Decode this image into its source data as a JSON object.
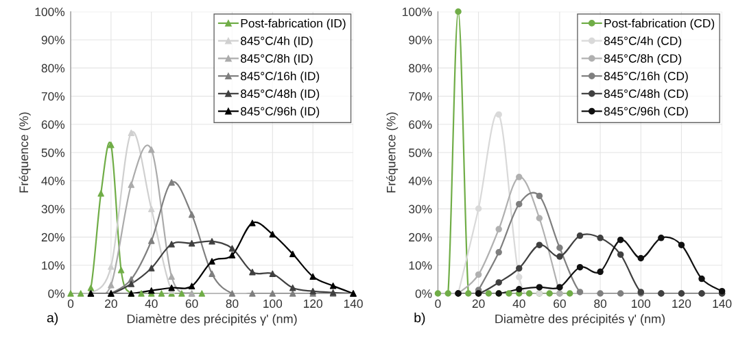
{
  "chart_data": [
    {
      "type": "line",
      "xlabel": "Diamètre des précipités γ' (nm)",
      "ylabel": "Fréquence (%)",
      "marker": "triangle",
      "legend": "top right",
      "grid": true,
      "xlim": [
        0,
        140
      ],
      "xticks": [
        0,
        20,
        40,
        60,
        80,
        100,
        120,
        140
      ],
      "ylim": [
        0,
        100
      ],
      "yticks": [
        {
          "value": 0,
          "label": "0%"
        },
        {
          "value": 10,
          "label": "10%"
        },
        {
          "value": 20,
          "label": "20%"
        },
        {
          "value": 30,
          "label": "30%"
        },
        {
          "value": 40,
          "label": "40%"
        },
        {
          "value": 50,
          "label": "50%"
        },
        {
          "value": 60,
          "label": "60%"
        },
        {
          "value": 70,
          "label": "70%"
        },
        {
          "value": 80,
          "label": "80%"
        },
        {
          "value": 90,
          "label": "90%"
        },
        {
          "value": 100,
          "label": "100%"
        }
      ],
      "annotations": [
        "a)"
      ],
      "series": [
        {
          "name": "Post-fabrication (ID)",
          "color": "#70ad47",
          "x": [
            0,
            5,
            10,
            15,
            20,
            25,
            30,
            35,
            40,
            45,
            50,
            55,
            60,
            65
          ],
          "values": [
            0,
            0,
            2,
            35.5,
            52.7,
            8.3,
            0,
            0,
            0,
            0,
            0,
            0,
            0,
            0
          ]
        },
        {
          "name": "845°C/4h (ID)",
          "color": "#d0d0d0",
          "x": [
            10,
            20,
            30,
            40,
            50,
            60
          ],
          "values": [
            0,
            9.5,
            57,
            30,
            1,
            0
          ]
        },
        {
          "name": "845°C/8h (ID)",
          "color": "#ababab",
          "x": [
            10,
            20,
            30,
            40,
            50,
            60
          ],
          "values": [
            0,
            3,
            38.6,
            51,
            6,
            0
          ]
        },
        {
          "name": "845°C/16h (ID)",
          "color": "#7f7f7f",
          "x": [
            20,
            30,
            40,
            50,
            60,
            70,
            80,
            90,
            100,
            110,
            120,
            130,
            140
          ],
          "values": [
            0,
            5,
            18.7,
            39.4,
            28,
            7,
            0,
            0,
            0,
            0,
            0,
            0,
            0
          ]
        },
        {
          "name": "845°C/48h (ID)",
          "color": "#404040",
          "x": [
            10,
            20,
            30,
            40,
            50,
            60,
            70,
            80,
            90,
            100,
            110,
            120,
            130,
            140
          ],
          "values": [
            0,
            0,
            3.4,
            9,
            17.5,
            17.8,
            18.5,
            16,
            7.6,
            7,
            2,
            0.8,
            0.3,
            0
          ]
        },
        {
          "name": "845°C/96h (ID)",
          "color": "#000000",
          "x": [
            10,
            20,
            30,
            40,
            50,
            60,
            70,
            80,
            90,
            100,
            110,
            120,
            130,
            140
          ],
          "values": [
            0,
            0,
            0,
            1,
            2,
            2.6,
            11.4,
            13.6,
            25,
            21,
            14,
            6,
            2.7,
            0
          ]
        }
      ]
    },
    {
      "type": "line",
      "xlabel": "Diamètre des précipités γ' (nm)",
      "ylabel": "Fréquence (%)",
      "marker": "circle",
      "legend": "top right",
      "grid": true,
      "xlim": [
        0,
        140
      ],
      "xticks": [
        0,
        20,
        40,
        60,
        80,
        100,
        120,
        140
      ],
      "ylim": [
        0,
        100
      ],
      "yticks": [
        {
          "value": 0,
          "label": "0%"
        },
        {
          "value": 10,
          "label": "10%"
        },
        {
          "value": 20,
          "label": "20%"
        },
        {
          "value": 30,
          "label": "30%"
        },
        {
          "value": 40,
          "label": "40%"
        },
        {
          "value": 50,
          "label": "50%"
        },
        {
          "value": 60,
          "label": "60%"
        },
        {
          "value": 70,
          "label": "70%"
        },
        {
          "value": 80,
          "label": "80%"
        },
        {
          "value": 90,
          "label": "90%"
        },
        {
          "value": 100,
          "label": "100%"
        }
      ],
      "annotations": [
        "b)"
      ],
      "series": [
        {
          "name": "Post-fabrication (CD)",
          "color": "#70ad47",
          "x": [
            0,
            5,
            10,
            15,
            20,
            25,
            30,
            35,
            40,
            45,
            50,
            55,
            60,
            65
          ],
          "values": [
            0,
            0,
            100,
            0,
            0,
            0,
            0,
            0,
            0,
            0,
            0,
            0,
            0,
            0
          ]
        },
        {
          "name": "845°C/4h (CD)",
          "color": "#d9d9d9",
          "x": [
            10,
            20,
            30,
            40,
            50,
            60
          ],
          "values": [
            0,
            30.1,
            63.5,
            5.8,
            0,
            0
          ]
        },
        {
          "name": "845°C/8h (CD)",
          "color": "#b0b0b0",
          "x": [
            10,
            20,
            30,
            40,
            50,
            60
          ],
          "values": [
            0,
            6.7,
            22.8,
            41.3,
            26.7,
            0
          ]
        },
        {
          "name": "845°C/16h (CD)",
          "color": "#7f7f7f",
          "x": [
            20,
            30,
            40,
            50,
            60,
            70,
            80,
            90,
            100,
            110,
            120,
            130,
            140
          ],
          "values": [
            1.2,
            14.6,
            31.7,
            34.6,
            16.2,
            0.5,
            0,
            0,
            0,
            0,
            0,
            0,
            0
          ]
        },
        {
          "name": "845°C/48h (CD)",
          "color": "#404040",
          "x": [
            10,
            20,
            30,
            40,
            50,
            60,
            70,
            80,
            90,
            100,
            110,
            120,
            130,
            140
          ],
          "values": [
            0,
            0,
            3.9,
            8.9,
            17.2,
            13.1,
            20.5,
            19.7,
            13.8,
            0.5,
            0,
            0,
            0,
            0
          ]
        },
        {
          "name": "845°C/96h (CD)",
          "color": "#111111",
          "x": [
            10,
            20,
            30,
            40,
            50,
            60,
            70,
            80,
            90,
            100,
            110,
            120,
            130,
            140
          ],
          "values": [
            0,
            0,
            0,
            1.5,
            2.2,
            2.2,
            9.3,
            7.7,
            19,
            12.5,
            19.7,
            17.2,
            5.2,
            0.8
          ]
        }
      ]
    }
  ]
}
